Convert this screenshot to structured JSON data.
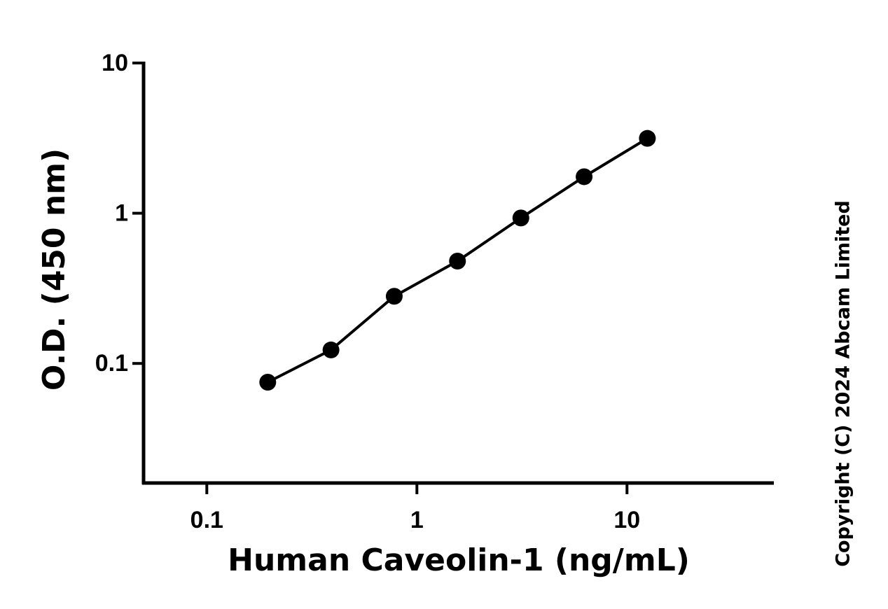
{
  "chart_data": {
    "type": "line",
    "x_label": "Human Caveolin-1 (ng/mL)",
    "y_label": "O.D. (450 nm)",
    "note": "Copyright (C) 2024 Abcam Limited",
    "x": [
      0.195,
      0.39,
      0.78,
      1.56,
      3.125,
      6.25,
      12.5
    ],
    "series": [
      {
        "color": "#000000",
        "values": [
          0.075,
          0.123,
          0.28,
          0.48,
          0.93,
          1.75,
          3.15
        ]
      }
    ],
    "xlim": [
      0.05,
      50
    ],
    "ylim": [
      0.016,
      10
    ],
    "xticks": [
      0.1,
      1,
      10
    ],
    "yticks": [
      0.1,
      1,
      10
    ],
    "xscale": "log",
    "yscale": "log",
    "grid": false,
    "markers": true
  }
}
